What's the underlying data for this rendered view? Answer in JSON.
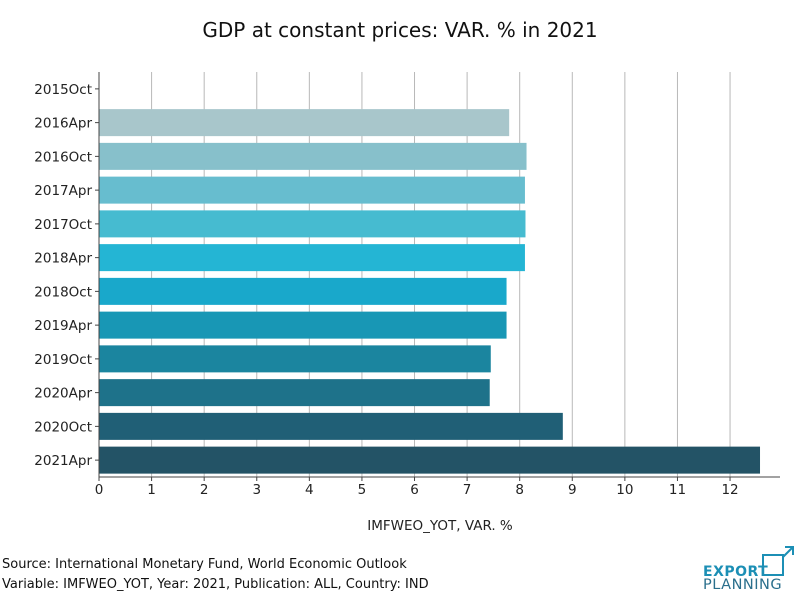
{
  "chart_data": {
    "type": "bar",
    "orientation": "horizontal",
    "title": "GDP at constant prices: VAR. % in 2021",
    "xlabel": "IMFWEO_YOT, VAR. %",
    "ylabel": "",
    "categories": [
      "2015Oct",
      "2016Apr",
      "2016Oct",
      "2017Apr",
      "2017Oct",
      "2018Apr",
      "2018Oct",
      "2019Apr",
      "2019Oct",
      "2020Apr",
      "2020Oct",
      "2021Apr"
    ],
    "values": [
      null,
      7.8,
      8.13,
      8.1,
      8.11,
      8.1,
      7.75,
      7.75,
      7.45,
      7.43,
      8.82,
      12.57
    ],
    "colors": [
      "#ffffff",
      "#a8c6cb",
      "#87c0cb",
      "#67bdcf",
      "#46bbd0",
      "#24b5d4",
      "#19a8cb",
      "#1897b5",
      "#1b859f",
      "#1e728a",
      "#205f76",
      "#235366"
    ],
    "xlim": [
      0,
      12.95
    ],
    "xticks": [
      0,
      1,
      2,
      3,
      4,
      5,
      6,
      7,
      8,
      9,
      10,
      11,
      12
    ],
    "grid": true
  },
  "footer": {
    "source": "Source: International Monetary Fund, World Economic Outlook",
    "variable": "Variable: IMFWEO_YOT, Year: 2021, Publication: ALL, Country: IND"
  },
  "logo": {
    "line1": "EXPORT",
    "line2": "PLANNING"
  }
}
